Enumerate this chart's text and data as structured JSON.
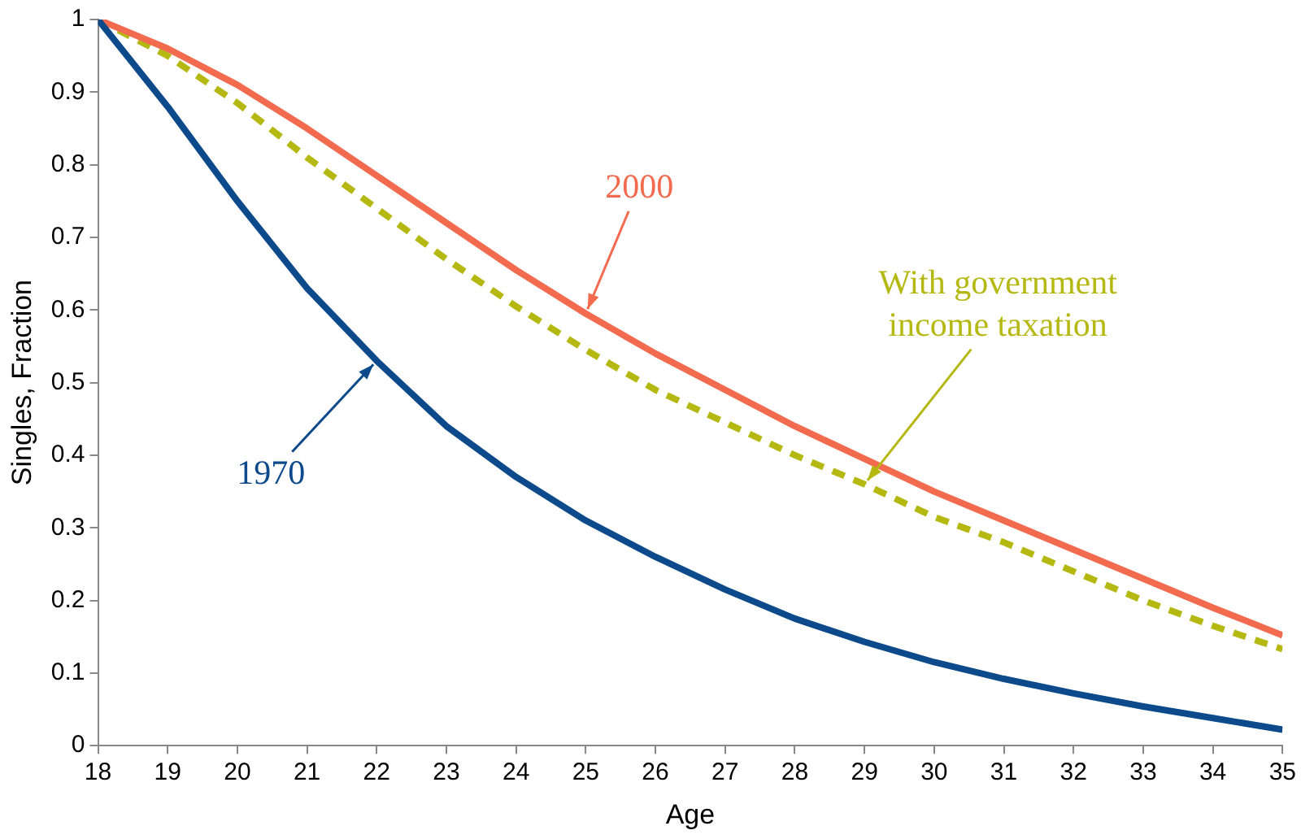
{
  "chart_data": {
    "type": "line",
    "xlabel": "Age",
    "ylabel": "Singles, Fraction",
    "x": [
      18,
      19,
      20,
      21,
      22,
      23,
      24,
      25,
      26,
      27,
      28,
      29,
      30,
      31,
      32,
      33,
      34,
      35
    ],
    "series": [
      {
        "name": "1970",
        "color": "#0d4a8c",
        "values": [
          1.0,
          0.88,
          0.75,
          0.63,
          0.53,
          0.44,
          0.37,
          0.31,
          0.26,
          0.215,
          0.175,
          0.143,
          0.115,
          0.092,
          0.072,
          0.054,
          0.038,
          0.022
        ]
      },
      {
        "name": "2000",
        "color": "#f26b4f",
        "values": [
          1.0,
          0.96,
          0.91,
          0.85,
          0.785,
          0.72,
          0.655,
          0.595,
          0.54,
          0.49,
          0.44,
          0.395,
          0.35,
          0.31,
          0.27,
          0.23,
          0.19,
          0.152
        ]
      },
      {
        "name": "With government income taxation",
        "color": "#b5b811",
        "line_style": "dashed",
        "values": [
          1.0,
          0.95,
          0.885,
          0.81,
          0.74,
          0.67,
          0.605,
          0.545,
          0.49,
          0.445,
          0.4,
          0.36,
          0.315,
          0.28,
          0.24,
          0.2,
          0.165,
          0.133
        ]
      }
    ],
    "xlim": [
      18,
      35
    ],
    "xticks": [
      18,
      19,
      20,
      21,
      22,
      23,
      24,
      25,
      26,
      27,
      28,
      29,
      30,
      31,
      32,
      33,
      34,
      35
    ],
    "ylim": [
      0,
      1
    ],
    "yticks": [
      0,
      0.1,
      0.2,
      0.3,
      0.4,
      0.5,
      0.6,
      0.7,
      0.8,
      0.9,
      1
    ],
    "grid": false,
    "legend": false,
    "marker": "none",
    "line_style": "solid"
  }
}
